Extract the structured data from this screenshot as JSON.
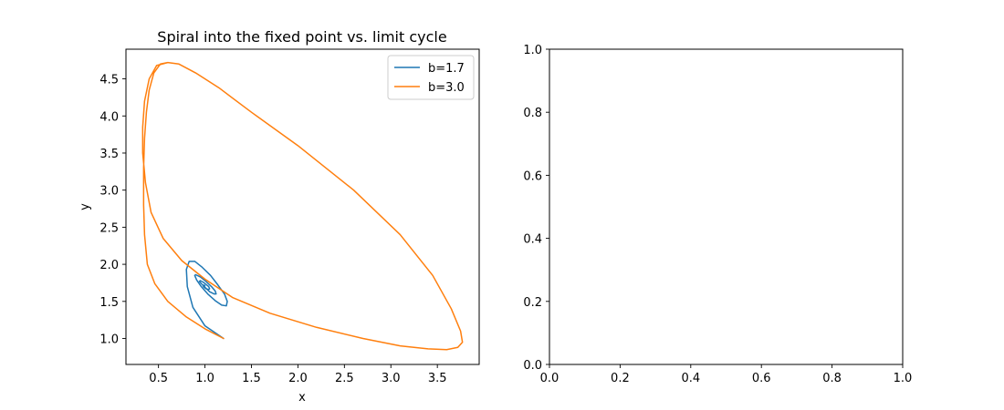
{
  "chart_data": [
    {
      "type": "line",
      "title": "Spiral into the fixed point vs. limit cycle",
      "xlabel": "x",
      "ylabel": "y",
      "xlim": [
        0.15,
        3.95
      ],
      "ylim": [
        0.65,
        4.9
      ],
      "xticks": [
        0.5,
        1.0,
        1.5,
        2.0,
        2.5,
        3.0,
        3.5
      ],
      "xtick_labels": [
        "0.5",
        "1.0",
        "1.5",
        "2.0",
        "2.5",
        "3.0",
        "3.5"
      ],
      "yticks": [
        1.0,
        1.5,
        2.0,
        2.5,
        3.0,
        3.5,
        4.0,
        4.5
      ],
      "ytick_labels": [
        "1.0",
        "1.5",
        "2.0",
        "2.5",
        "3.0",
        "3.5",
        "4.0",
        "4.5"
      ],
      "grid": false,
      "legend": "top-right",
      "series": [
        {
          "name": "b=1.7",
          "color": "#1f77b4",
          "x": [
            1.2,
            1.0,
            0.87,
            0.81,
            0.8,
            0.83,
            0.89,
            0.97,
            1.06,
            1.14,
            1.21,
            1.24,
            1.23,
            1.18,
            1.11,
            1.03,
            0.96,
            0.91,
            0.89,
            0.9,
            0.95,
            1.01,
            1.07,
            1.11,
            1.12,
            1.1,
            1.05,
            1.0,
            0.96,
            0.94,
            0.95,
            0.98,
            1.01,
            1.04,
            1.05,
            1.04,
            1.01,
            0.99,
            0.98,
            0.99,
            1.0
          ],
          "y": [
            1.0,
            1.17,
            1.42,
            1.7,
            1.93,
            2.04,
            2.04,
            1.96,
            1.85,
            1.72,
            1.6,
            1.5,
            1.44,
            1.45,
            1.51,
            1.6,
            1.7,
            1.79,
            1.85,
            1.86,
            1.83,
            1.77,
            1.7,
            1.64,
            1.6,
            1.6,
            1.63,
            1.69,
            1.74,
            1.77,
            1.78,
            1.76,
            1.73,
            1.7,
            1.67,
            1.66,
            1.67,
            1.69,
            1.71,
            1.72,
            1.71
          ]
        },
        {
          "name": "b=3.0",
          "color": "#ff7f0e",
          "x": [
            1.2,
            1.0,
            0.8,
            0.6,
            0.46,
            0.38,
            0.35,
            0.34,
            0.34,
            0.35,
            0.37,
            0.4,
            0.45,
            0.52,
            0.6,
            0.72,
            0.9,
            1.15,
            1.5,
            2.0,
            2.6,
            3.1,
            3.45,
            3.65,
            3.75,
            3.77,
            3.72,
            3.6,
            3.4,
            3.1,
            2.7,
            2.2,
            1.7,
            1.3,
            1.0,
            0.75,
            0.55,
            0.42,
            0.36,
            0.33,
            0.33,
            0.35,
            0.4,
            0.48,
            0.6
          ],
          "y": [
            1.0,
            1.13,
            1.29,
            1.5,
            1.74,
            2.0,
            2.4,
            2.8,
            3.3,
            3.7,
            4.05,
            4.35,
            4.58,
            4.7,
            4.72,
            4.7,
            4.58,
            4.38,
            4.05,
            3.6,
            3.0,
            2.4,
            1.85,
            1.4,
            1.1,
            0.95,
            0.88,
            0.85,
            0.86,
            0.9,
            1.0,
            1.15,
            1.34,
            1.55,
            1.8,
            2.05,
            2.35,
            2.7,
            3.1,
            3.5,
            3.85,
            4.2,
            4.5,
            4.68,
            4.72
          ]
        }
      ]
    },
    {
      "type": "line",
      "title": "",
      "xlabel": "",
      "ylabel": "",
      "xlim": [
        0.0,
        1.0
      ],
      "ylim": [
        0.0,
        1.0
      ],
      "xticks": [
        0.0,
        0.2,
        0.4,
        0.6,
        0.8,
        1.0
      ],
      "xtick_labels": [
        "0.0",
        "0.2",
        "0.4",
        "0.6",
        "0.8",
        "1.0"
      ],
      "yticks": [
        0.0,
        0.2,
        0.4,
        0.6,
        0.8,
        1.0
      ],
      "ytick_labels": [
        "0.0",
        "0.2",
        "0.4",
        "0.6",
        "0.8",
        "1.0"
      ],
      "grid": false,
      "series": []
    }
  ]
}
